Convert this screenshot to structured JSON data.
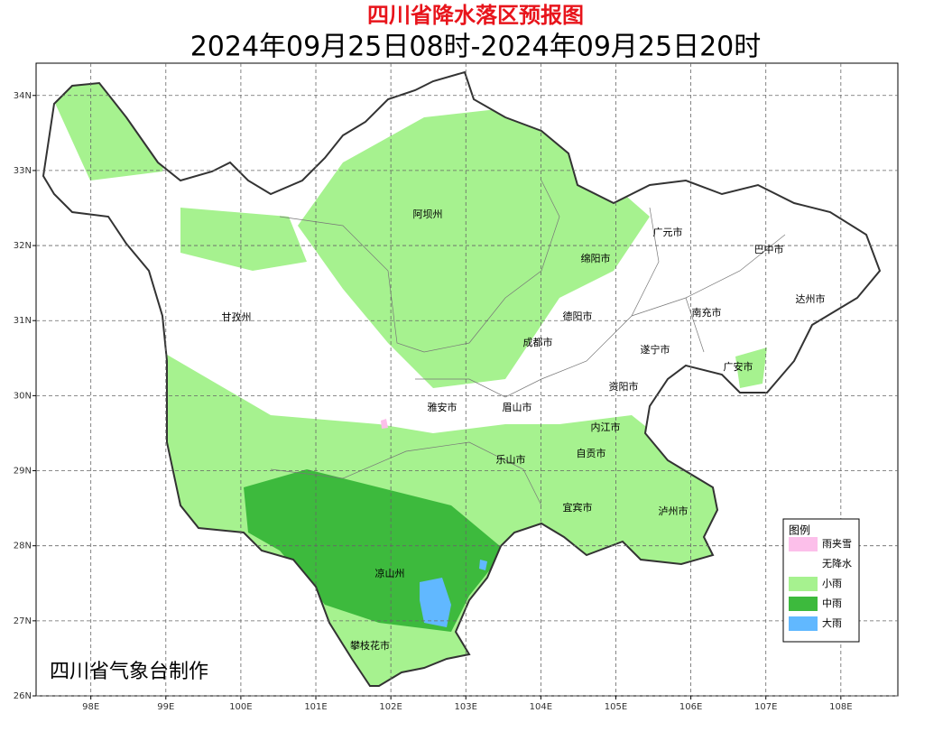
{
  "header": {
    "title": "四川省降水落区预报图",
    "subtitle": "2024年09月25日08时-2024年09月25日20时"
  },
  "map": {
    "lon_range": [
      97.27,
      108.76
    ],
    "lat_range": [
      26,
      34.43
    ],
    "lon_ticks": [
      {
        "value": 98,
        "label": "98E"
      },
      {
        "value": 99,
        "label": "99E"
      },
      {
        "value": 100,
        "label": "100E"
      },
      {
        "value": 101,
        "label": "101E"
      },
      {
        "value": 102,
        "label": "102E"
      },
      {
        "value": 103,
        "label": "103E"
      },
      {
        "value": 104,
        "label": "104E"
      },
      {
        "value": 105,
        "label": "105E"
      },
      {
        "value": 106,
        "label": "106E"
      },
      {
        "value": 107,
        "label": "107E"
      },
      {
        "value": 108,
        "label": "108E"
      }
    ],
    "lat_ticks": [
      {
        "value": 26,
        "label": "26N"
      },
      {
        "value": 27,
        "label": "27N"
      },
      {
        "value": 28,
        "label": "28N"
      },
      {
        "value": 29,
        "label": "29N"
      },
      {
        "value": 30,
        "label": "30N"
      },
      {
        "value": 31,
        "label": "31N"
      },
      {
        "value": 32,
        "label": "32N"
      },
      {
        "value": 33,
        "label": "33N"
      },
      {
        "value": 34,
        "label": "34N"
      }
    ],
    "labels": [
      "阿坝州",
      "甘孜州",
      "广元市",
      "巴中市",
      "绵阳市",
      "德阳市",
      "南充市",
      "达州市",
      "成都市",
      "遂宁市",
      "广安市",
      "资阳市",
      "雅安市",
      "眉山市",
      "内江市",
      "自贡市",
      "乐山市",
      "宜宾市",
      "泸州市",
      "凉山州",
      "攀枝花市"
    ],
    "legend": {
      "title": "图例",
      "items": [
        {
          "name": "雨夹雪",
          "color": "#fcbfea"
        },
        {
          "name": "无降水",
          "color": "#ffffff"
        },
        {
          "name": "小雨",
          "color": "#a6f28f"
        },
        {
          "name": "中雨",
          "color": "#3dba3d"
        },
        {
          "name": "大雨",
          "color": "#61b8ff"
        }
      ]
    },
    "credit": "四川省气象台制作"
  }
}
